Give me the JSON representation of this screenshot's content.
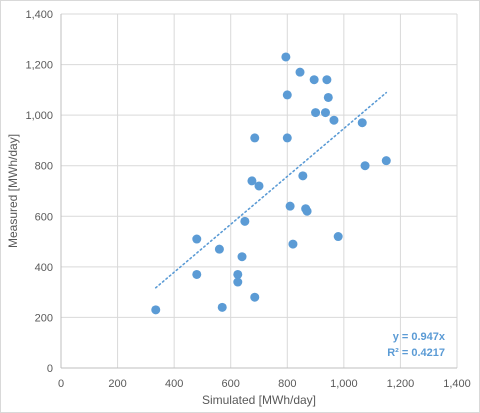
{
  "chart_data": {
    "type": "scatter",
    "title": "",
    "xlabel": "Simulated [MWh/day]",
    "ylabel": "Measured [MWh/day]",
    "xlim": [
      0,
      1400
    ],
    "ylim": [
      0,
      1400
    ],
    "xticks": [
      "0",
      "200",
      "400",
      "600",
      "800",
      "1,000",
      "1,200",
      "1,400"
    ],
    "yticks": [
      "0",
      "200",
      "400",
      "600",
      "800",
      "1,000",
      "1,200",
      "1,400"
    ],
    "grid": true,
    "legend": "none",
    "series": [
      {
        "color": "#5b9bd5",
        "points": [
          [
            335,
            230
          ],
          [
            480,
            510
          ],
          [
            480,
            370
          ],
          [
            560,
            470
          ],
          [
            570,
            240
          ],
          [
            625,
            370
          ],
          [
            625,
            340
          ],
          [
            640,
            440
          ],
          [
            650,
            580
          ],
          [
            675,
            740
          ],
          [
            685,
            280
          ],
          [
            685,
            910
          ],
          [
            700,
            720
          ],
          [
            795,
            1230
          ],
          [
            800,
            1080
          ],
          [
            800,
            910
          ],
          [
            810,
            640
          ],
          [
            820,
            490
          ],
          [
            845,
            1170
          ],
          [
            855,
            760
          ],
          [
            865,
            630
          ],
          [
            870,
            620
          ],
          [
            895,
            1140
          ],
          [
            900,
            1010
          ],
          [
            935,
            1010
          ],
          [
            940,
            1140
          ],
          [
            945,
            1070
          ],
          [
            965,
            980
          ],
          [
            980,
            520
          ],
          [
            1065,
            970
          ],
          [
            1075,
            800
          ],
          [
            1150,
            820
          ]
        ]
      }
    ],
    "trendline": {
      "type": "linear",
      "style": "dotted",
      "color": "#5b9bd5",
      "slope": 0.947,
      "intercept": 0,
      "x_range": [
        335,
        1150
      ],
      "equation": "y = 0.947x",
      "r_squared": "R² = 0.4217"
    }
  }
}
